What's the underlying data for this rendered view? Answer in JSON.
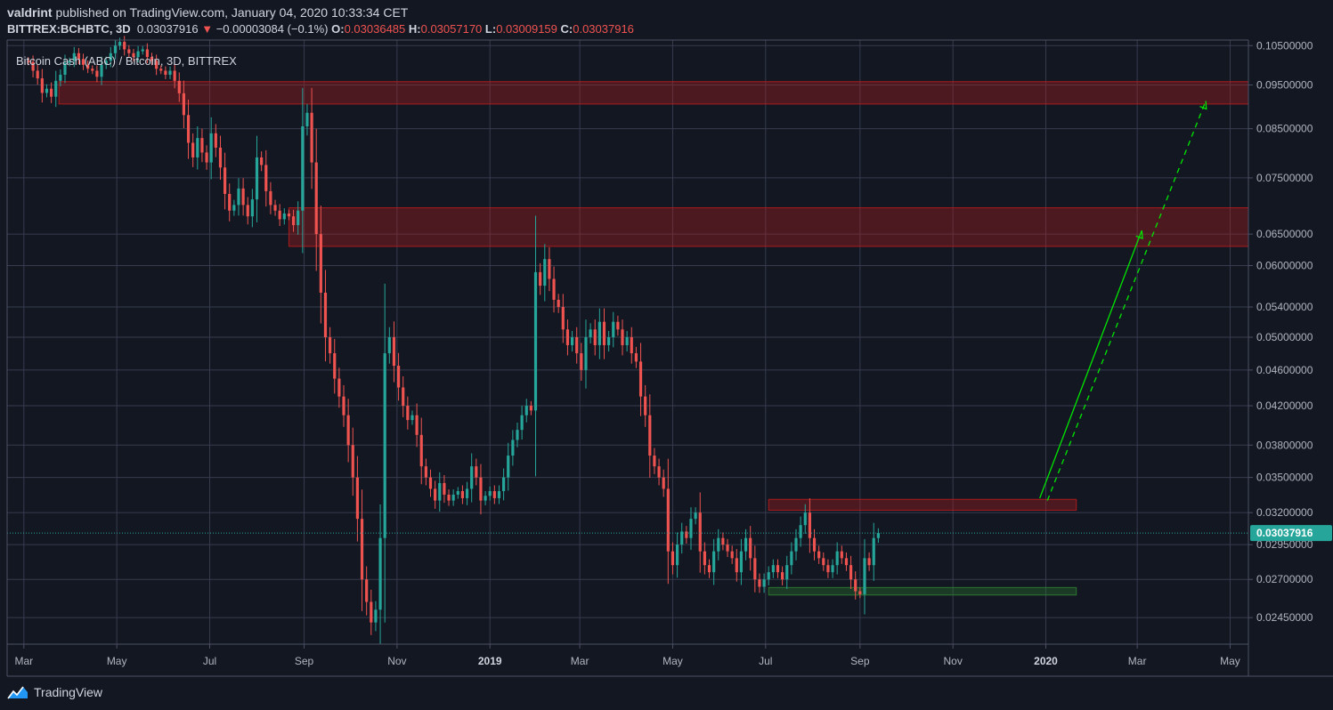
{
  "header": {
    "publisher": "valdrint",
    "published_text": "published on TradingView.com, January 04, 2020 10:33:34 CET",
    "symbol": "BITTREX:BCHBTC, 3D",
    "last": "0.03037916",
    "change_arrow": "▼",
    "change": "−0.00003084 (−0.1%)",
    "o_label": "O:",
    "o_value": "0.03036485",
    "h_label": "H:",
    "h_value": "0.03057170",
    "l_label": "L:",
    "l_value": "0.03009159",
    "c_label": "C:",
    "c_value": "0.03037916"
  },
  "legend": "Bitcoin Cash (ABC) / Bitcoin, 3D, BITTREX",
  "footer": {
    "brand": "TradingView"
  },
  "colors": {
    "background": "#131722",
    "grid": "#363c4e",
    "up": "#26a69a",
    "down": "#ef5350",
    "resistance_zone": "#b71c1c",
    "support_zone": "#2e7d32",
    "projection": "#00e600",
    "price_line": "#26a69a"
  },
  "chart_data": {
    "type": "candlestick",
    "title": "Bitcoin Cash (ABC) / Bitcoin, 3D, BITTREX",
    "y_scale": "log",
    "ylim": [
      0.0229,
      0.1065
    ],
    "xlim": [
      "2018-02-18",
      "2020-05-13"
    ],
    "y_ticks": [
      "0.10500000",
      "0.09500000",
      "0.08500000",
      "0.07500000",
      "0.06500000",
      "0.06000000",
      "0.05400000",
      "0.05000000",
      "0.04600000",
      "0.04200000",
      "0.03800000",
      "0.03500000",
      "0.03200000",
      "0.02950000",
      "0.02700000",
      "0.02450000"
    ],
    "x_ticks": [
      {
        "label": "Mar",
        "date": "2018-03-01",
        "bold": false
      },
      {
        "label": "May",
        "date": "2018-05-01",
        "bold": false
      },
      {
        "label": "Jul",
        "date": "2018-07-01",
        "bold": false
      },
      {
        "label": "Sep",
        "date": "2018-09-01",
        "bold": false
      },
      {
        "label": "Nov",
        "date": "2018-11-01",
        "bold": false
      },
      {
        "label": "2019",
        "date": "2019-01-01",
        "bold": true
      },
      {
        "label": "Mar",
        "date": "2019-03-01",
        "bold": false
      },
      {
        "label": "May",
        "date": "2019-05-01",
        "bold": false
      },
      {
        "label": "Jul",
        "date": "2019-07-01",
        "bold": false
      },
      {
        "label": "Sep",
        "date": "2019-09-01",
        "bold": false
      },
      {
        "label": "Nov",
        "date": "2019-11-01",
        "bold": false
      },
      {
        "label": "2020",
        "date": "2020-01-01",
        "bold": true
      },
      {
        "label": "Mar",
        "date": "2020-03-01",
        "bold": false
      },
      {
        "label": "May",
        "date": "2020-05-01",
        "bold": false
      }
    ],
    "current_price": "0.03037916",
    "zones": [
      {
        "kind": "resistance",
        "from": "2018-03-24",
        "to": "2020-05-13",
        "y_low": 0.0905,
        "y_high": 0.0958
      },
      {
        "kind": "resistance",
        "from": "2018-08-22",
        "to": "2020-05-13",
        "y_low": 0.063,
        "y_high": 0.0695
      },
      {
        "kind": "resistance",
        "from": "2019-07-03",
        "to": "2020-01-21",
        "y_low": 0.0322,
        "y_high": 0.0331
      },
      {
        "kind": "support",
        "from": "2019-07-03",
        "to": "2020-01-21",
        "y_low": 0.02595,
        "y_high": 0.02645
      }
    ],
    "projections": [
      {
        "style": "solid",
        "from_date": "2019-12-28",
        "from_price": 0.0332,
        "to_date": "2020-03-04",
        "to_price": 0.0656
      },
      {
        "style": "dashed",
        "from_date": "2020-01-02",
        "from_price": 0.033,
        "to_date": "2020-04-15",
        "to_price": 0.0912
      }
    ],
    "x_origin": "2018-03-04",
    "step_days": 3,
    "closes": [
      0.1007,
      0.0985,
      0.0966,
      0.0931,
      0.0941,
      0.0922,
      0.096,
      0.0975,
      0.1005,
      0.101,
      0.103,
      0.1015,
      0.1,
      0.099,
      0.0985,
      0.097,
      0.1,
      0.101,
      0.103,
      0.105,
      0.106,
      0.104,
      0.103,
      0.102,
      0.1035,
      0.104,
      0.102,
      0.101,
      0.099,
      0.0985,
      0.0975,
      0.0985,
      0.096,
      0.093,
      0.088,
      0.082,
      0.079,
      0.083,
      0.08,
      0.078,
      0.084,
      0.081,
      0.077,
      0.072,
      0.069,
      0.07,
      0.073,
      0.07,
      0.068,
      0.071,
      0.079,
      0.0775,
      0.0725,
      0.07,
      0.069,
      0.0675,
      0.0685,
      0.068,
      0.0665,
      0.069,
      0.0855,
      0.0885,
      0.078,
      0.065,
      0.056,
      0.05,
      0.048,
      0.045,
      0.043,
      0.041,
      0.038,
      0.035,
      0.0315,
      0.027,
      0.0255,
      0.0242,
      0.025,
      0.03,
      0.048,
      0.05,
      0.0465,
      0.044,
      0.042,
      0.0405,
      0.041,
      0.039,
      0.036,
      0.035,
      0.034,
      0.033,
      0.0345,
      0.0335,
      0.033,
      0.0335,
      0.0338,
      0.0332,
      0.034,
      0.036,
      0.035,
      0.033,
      0.0334,
      0.0338,
      0.0332,
      0.0338,
      0.035,
      0.037,
      0.0385,
      0.0395,
      0.041,
      0.042,
      0.0415,
      0.059,
      0.057,
      0.061,
      0.058,
      0.055,
      0.054,
      0.051,
      0.049,
      0.05,
      0.048,
      0.046,
      0.05,
      0.051,
      0.049,
      0.052,
      0.049,
      0.05,
      0.052,
      0.051,
      0.049,
      0.05,
      0.048,
      0.047,
      0.043,
      0.041,
      0.037,
      0.036,
      0.035,
      0.034,
      0.029,
      0.028,
      0.0295,
      0.0305,
      0.03,
      0.0315,
      0.032,
      0.029,
      0.028,
      0.0275,
      0.029,
      0.03,
      0.0295,
      0.029,
      0.0285,
      0.0275,
      0.029,
      0.03,
      0.0285,
      0.027,
      0.0265,
      0.027,
      0.0275,
      0.028,
      0.0275,
      0.027,
      0.028,
      0.029,
      0.03,
      0.031,
      0.032,
      0.03,
      0.029,
      0.0285,
      0.028,
      0.0275,
      0.028,
      0.029,
      0.0285,
      0.028,
      0.027,
      0.0262,
      0.026,
      0.0285,
      0.028,
      0.03,
      0.03037916
    ]
  }
}
